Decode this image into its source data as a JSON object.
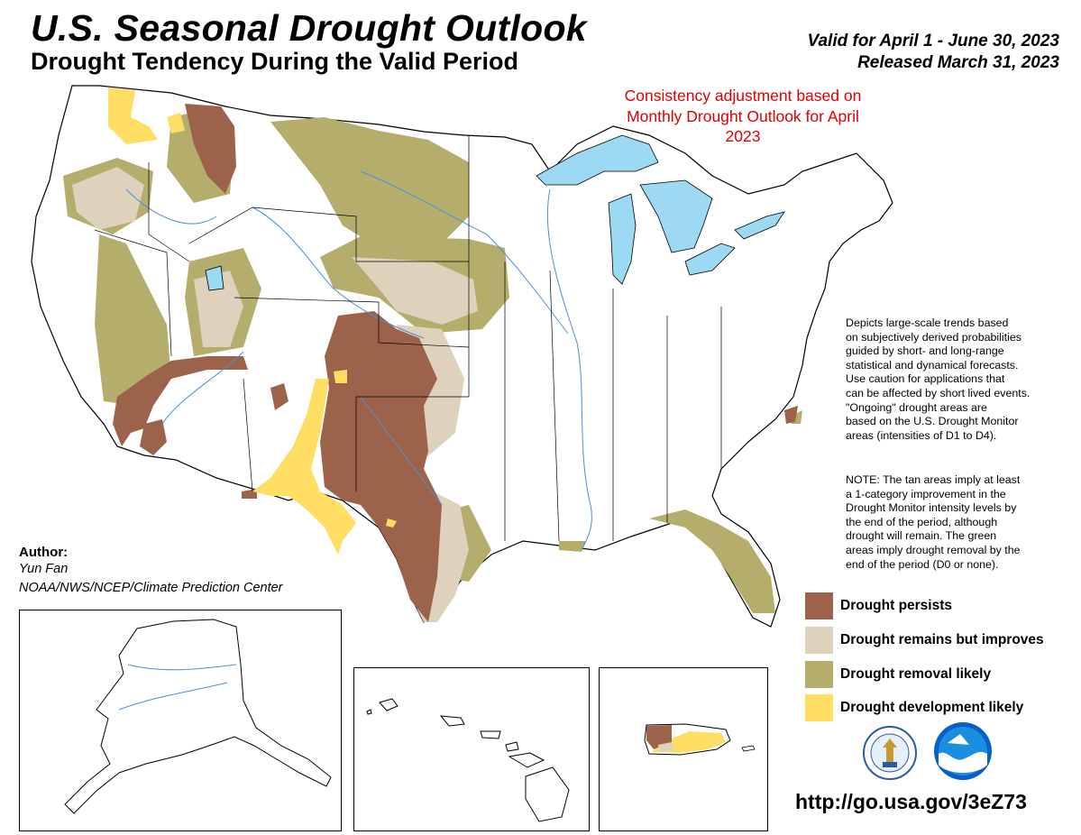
{
  "header": {
    "title": "U.S. Seasonal Drought Outlook",
    "subtitle": "Drought Tendency During the Valid Period",
    "valid": "Valid for April 1 - June 30, 2023",
    "released": "Released March 31, 2023"
  },
  "annotation": {
    "consistency": "Consistency adjustment based on Monthly Drought Outlook for April 2023"
  },
  "notes": {
    "description": "Depicts large-scale trends based\non subjectively derived probabilities\nguided by short- and long-range\nstatistical and dynamical forecasts.\nUse caution for applications that\ncan be affected by short lived events.\n\"Ongoing\" drought areas are\nbased on the U.S. Drought Monitor\nareas (intensities of D1 to D4).",
    "note": "NOTE: The tan areas imply at least\na 1-category improvement in the\nDrought Monitor intensity levels by\nthe end of the period, although\ndrought will remain. The green\nareas imply drought removal by the\nend of the period (D0 or none)."
  },
  "author": {
    "label": "Author:",
    "name": "Yun Fan",
    "org": "NOAA/NWS/NCEP/Climate Prediction Center"
  },
  "legend": [
    {
      "label": "Drought persists",
      "color": "#9c634a"
    },
    {
      "label": "Drought remains but improves",
      "color": "#ded2bd"
    },
    {
      "label": "Drought removal likely",
      "color": "#b5ad6b"
    },
    {
      "label": "Drought development likely",
      "color": "#ffde63"
    }
  ],
  "colors": {
    "water": "#9cd9f2",
    "rivers": "#4a8fd6",
    "boundary": "#000000"
  },
  "logos": [
    "department-of-commerce-seal",
    "noaa-logo"
  ],
  "url": "http://go.usa.gov/3eZ73"
}
